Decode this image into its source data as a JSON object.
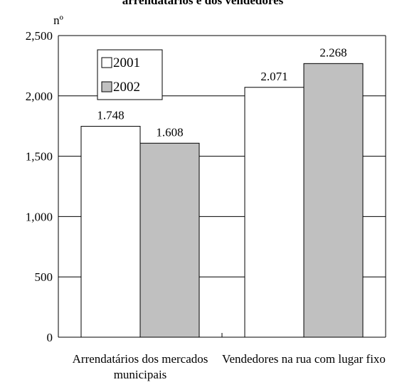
{
  "chart_data": {
    "type": "bar",
    "title": "arrendatários e dos vendedores",
    "y_label": "nº",
    "categories": [
      "Arrendatários dos mercados municipais",
      "Vendedores na rua com lugar fixo"
    ],
    "series": [
      {
        "name": "2001",
        "color": "#ffffff",
        "values": [
          1748,
          2071
        ],
        "value_labels": [
          "1.748",
          "2.071"
        ]
      },
      {
        "name": "2002",
        "color": "#c0c0c0",
        "values": [
          1608,
          2268
        ],
        "value_labels": [
          "1.608",
          "2.268"
        ]
      }
    ],
    "ylim": [
      0,
      2500
    ],
    "yticks": [
      0,
      500,
      {
        "value": 1000,
        "label": "1,000"
      },
      {
        "value": 1500,
        "label": "1,500"
      },
      {
        "value": 2000,
        "label": "2,000"
      },
      {
        "value": 2500,
        "label": "2,500"
      }
    ],
    "grid": true,
    "legend": "upper left"
  }
}
